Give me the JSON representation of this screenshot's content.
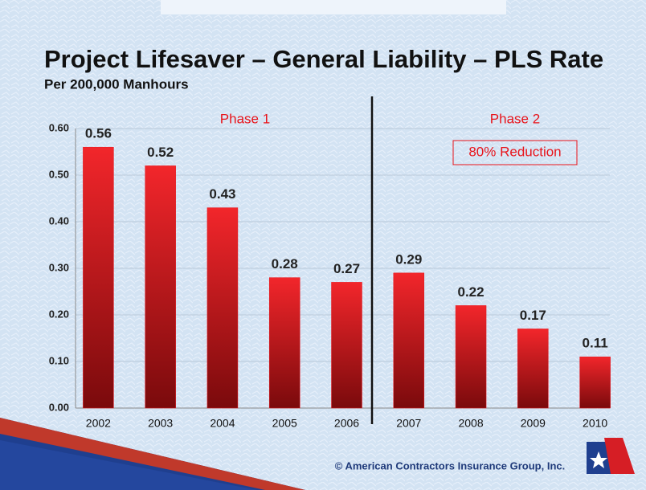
{
  "chart_data": {
    "type": "bar",
    "title": "Project Lifesaver – General Liability – PLS Rate",
    "subtitle": "Per 200,000 Manhours",
    "categories": [
      "2002",
      "2003",
      "2004",
      "2005",
      "2006",
      "2007",
      "2008",
      "2009",
      "2010"
    ],
    "values": [
      0.56,
      0.52,
      0.43,
      0.28,
      0.27,
      0.29,
      0.22,
      0.17,
      0.11
    ],
    "color": "#e8141b",
    "ylim": [
      0,
      0.6
    ],
    "yticks": [
      {
        "value": 0,
        "label": "0.00"
      },
      {
        "value": 0.1,
        "label": "0.10"
      },
      {
        "value": 0.2,
        "label": "0.20"
      },
      {
        "value": 0.3,
        "label": "0.30"
      },
      {
        "value": 0.4,
        "label": "0.40"
      },
      {
        "value": 0.5,
        "label": "0.50"
      },
      {
        "value": 0.6,
        "label": "0.60"
      }
    ],
    "grid": true,
    "annotations": [
      "Phase 1",
      "Phase 2",
      "80% Reduction"
    ],
    "footer": "© American Contractors Insurance Group, Inc."
  }
}
